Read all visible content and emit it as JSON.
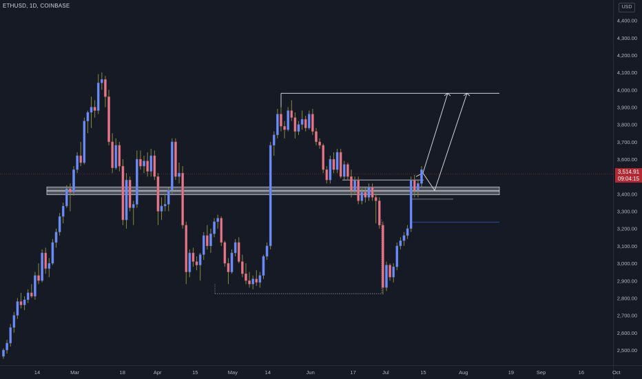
{
  "symbol_line": "ETHUSD, 1D, COINBASE",
  "currency": "USD",
  "last_price": {
    "price": "3,514.91",
    "countdown": "09:04:15"
  },
  "colors": {
    "up": "#6f8df0",
    "down": "#e07a8a",
    "wick": "#8a8a3c",
    "line": "#cfd2d8",
    "grid": "#1f2330",
    "text": "#b2b5be",
    "support": "#9598a1",
    "blue_line": "#2849a8",
    "bg": "#161a25"
  },
  "chart_data": {
    "type": "candlestick",
    "title": "ETHUSD, 1D, COINBASE",
    "y_axis": {
      "ylim": [
        2445,
        4470
      ],
      "ticks": [
        "2,500.00",
        "2,600.00",
        "2,700.00",
        "2,800.00",
        "2,900.00",
        "3,000.00",
        "3,100.00",
        "3,200.00",
        "3,300.00",
        "3,400.00",
        "3,500.00",
        "3,600.00",
        "3,700.00",
        "3,800.00",
        "3,900.00",
        "4,000.00",
        "4,100.00",
        "4,200.00",
        "4,300.00",
        "4,400.00"
      ],
      "tick_values": [
        2500,
        2600,
        2700,
        2800,
        2900,
        3000,
        3100,
        3200,
        3300,
        3400,
        3500,
        3600,
        3700,
        3800,
        3900,
        4000,
        4100,
        4200,
        4300,
        4400
      ],
      "position": "right"
    },
    "x_axis": {
      "labels": [
        "14",
        "Mar",
        "18",
        "Apr",
        "15",
        "May",
        "14",
        "Jun",
        "17",
        "Jul",
        "15",
        "Aug",
        "19",
        "Sep",
        "16",
        "Oct"
      ],
      "label_days": [
        14,
        29,
        48,
        62,
        77,
        92,
        106,
        123,
        140,
        153,
        168,
        184,
        203,
        215,
        231,
        245
      ]
    },
    "grid": false,
    "candles": [
      [
        2464,
        2510,
        2450,
        2500
      ],
      [
        2500,
        2560,
        2480,
        2540
      ],
      [
        2540,
        2650,
        2520,
        2630
      ],
      [
        2630,
        2720,
        2600,
        2700
      ],
      [
        2700,
        2800,
        2680,
        2780
      ],
      [
        2780,
        2830,
        2740,
        2760
      ],
      [
        2760,
        2810,
        2730,
        2790
      ],
      [
        2790,
        2850,
        2770,
        2830
      ],
      [
        2830,
        2880,
        2800,
        2810
      ],
      [
        2810,
        2950,
        2790,
        2930
      ],
      [
        2930,
        3000,
        2880,
        2900
      ],
      [
        2900,
        3080,
        2890,
        3060
      ],
      [
        3060,
        3090,
        2940,
        2970
      ],
      [
        2970,
        3030,
        2920,
        3000
      ],
      [
        3000,
        3140,
        2990,
        3120
      ],
      [
        3120,
        3200,
        3090,
        3180
      ],
      [
        3180,
        3290,
        3160,
        3270
      ],
      [
        3270,
        3350,
        3230,
        3330
      ],
      [
        3330,
        3450,
        3320,
        3430
      ],
      [
        3430,
        3460,
        3300,
        3410
      ],
      [
        3410,
        3560,
        3390,
        3540
      ],
      [
        3540,
        3640,
        3520,
        3620
      ],
      [
        3620,
        3700,
        3560,
        3580
      ],
      [
        3580,
        3840,
        3570,
        3820
      ],
      [
        3820,
        3880,
        3750,
        3870
      ],
      [
        3870,
        3960,
        3780,
        3900
      ],
      [
        3900,
        3940,
        3840,
        3880
      ],
      [
        3880,
        4090,
        3860,
        4040
      ],
      [
        4040,
        4100,
        4000,
        4060
      ],
      [
        4060,
        4080,
        3900,
        3960
      ],
      [
        3960,
        4000,
        3680,
        3700
      ],
      [
        3700,
        3750,
        3520,
        3550
      ],
      [
        3550,
        3720,
        3540,
        3680
      ],
      [
        3680,
        3700,
        3530,
        3560
      ],
      [
        3560,
        3600,
        3220,
        3250
      ],
      [
        3250,
        3520,
        3200,
        3480
      ],
      [
        3480,
        3500,
        3300,
        3320
      ],
      [
        3320,
        3360,
        3220,
        3340
      ],
      [
        3340,
        3650,
        3320,
        3600
      ],
      [
        3600,
        3650,
        3540,
        3560
      ],
      [
        3560,
        3620,
        3520,
        3590
      ],
      [
        3590,
        3640,
        3500,
        3530
      ],
      [
        3530,
        3660,
        3500,
        3620
      ],
      [
        3620,
        3650,
        3480,
        3500
      ],
      [
        3500,
        3520,
        3220,
        3300
      ],
      [
        3300,
        3380,
        3250,
        3330
      ],
      [
        3330,
        3400,
        3300,
        3340
      ],
      [
        3340,
        3440,
        3300,
        3420
      ],
      [
        3420,
        3720,
        3400,
        3700
      ],
      [
        3700,
        3720,
        3480,
        3500
      ],
      [
        3500,
        3580,
        3460,
        3520
      ],
      [
        3520,
        3560,
        3200,
        3220
      ],
      [
        3220,
        3240,
        2880,
        2950
      ],
      [
        2950,
        3080,
        2920,
        3060
      ],
      [
        3060,
        3090,
        2980,
        3010
      ],
      [
        3010,
        3040,
        2960,
        2990
      ],
      [
        2990,
        3060,
        2900,
        3050
      ],
      [
        3050,
        3180,
        3020,
        3160
      ],
      [
        3160,
        3220,
        3080,
        3100
      ],
      [
        3100,
        3200,
        3060,
        3170
      ],
      [
        3170,
        3260,
        3150,
        3240
      ],
      [
        3240,
        3280,
        3200,
        3260
      ],
      [
        3260,
        3270,
        3100,
        3120
      ],
      [
        3120,
        3130,
        2980,
        3000
      ],
      [
        3000,
        3030,
        2880,
        2950
      ],
      [
        2950,
        3080,
        2940,
        3060
      ],
      [
        3060,
        3140,
        3040,
        3120
      ],
      [
        3120,
        3150,
        3000,
        3010
      ],
      [
        3010,
        3050,
        2920,
        2940
      ],
      [
        2940,
        3000,
        2880,
        2900
      ],
      [
        2900,
        2950,
        2860,
        2880
      ],
      [
        2880,
        2930,
        2850,
        2910
      ],
      [
        2910,
        2960,
        2870,
        2890
      ],
      [
        2890,
        2950,
        2860,
        2930
      ],
      [
        2930,
        3050,
        2910,
        3040
      ],
      [
        3040,
        3120,
        3020,
        3100
      ],
      [
        3100,
        3700,
        3080,
        3680
      ],
      [
        3680,
        3760,
        3620,
        3740
      ],
      [
        3740,
        3890,
        3720,
        3860
      ],
      [
        3860,
        3900,
        3760,
        3790
      ],
      [
        3790,
        3820,
        3720,
        3770
      ],
      [
        3770,
        3900,
        3760,
        3880
      ],
      [
        3880,
        3940,
        3820,
        3840
      ],
      [
        3840,
        3870,
        3720,
        3760
      ],
      [
        3760,
        3820,
        3740,
        3800
      ],
      [
        3800,
        3880,
        3770,
        3830
      ],
      [
        3830,
        3850,
        3760,
        3780
      ],
      [
        3780,
        3880,
        3770,
        3860
      ],
      [
        3860,
        3890,
        3740,
        3760
      ],
      [
        3760,
        3780,
        3680,
        3700
      ],
      [
        3700,
        3720,
        3660,
        3680
      ],
      [
        3680,
        3690,
        3520,
        3540
      ],
      [
        3540,
        3560,
        3460,
        3480
      ],
      [
        3480,
        3620,
        3460,
        3600
      ],
      [
        3600,
        3640,
        3520,
        3540
      ],
      [
        3540,
        3660,
        3520,
        3640
      ],
      [
        3640,
        3660,
        3490,
        3500
      ],
      [
        3500,
        3590,
        3480,
        3570
      ],
      [
        3570,
        3580,
        3480,
        3500
      ],
      [
        3500,
        3540,
        3380,
        3420
      ],
      [
        3420,
        3500,
        3400,
        3480
      ],
      [
        3480,
        3500,
        3340,
        3360
      ],
      [
        3360,
        3430,
        3340,
        3410
      ],
      [
        3410,
        3440,
        3350,
        3380
      ],
      [
        3380,
        3460,
        3360,
        3440
      ],
      [
        3440,
        3460,
        3360,
        3380
      ],
      [
        3380,
        3400,
        3230,
        3360
      ],
      [
        3360,
        3380,
        3200,
        3220
      ],
      [
        3220,
        3240,
        2820,
        2860
      ],
      [
        2860,
        3010,
        2840,
        2990
      ],
      [
        2990,
        3000,
        2900,
        2920
      ],
      [
        2920,
        3000,
        2890,
        2980
      ],
      [
        2980,
        3120,
        2960,
        3100
      ],
      [
        3100,
        3150,
        3080,
        3130
      ],
      [
        3130,
        3180,
        3100,
        3160
      ],
      [
        3160,
        3220,
        3140,
        3200
      ],
      [
        3200,
        3500,
        3180,
        3480
      ],
      [
        3480,
        3510,
        3380,
        3420
      ],
      [
        3420,
        3480,
        3380,
        3460
      ],
      [
        3460,
        3560,
        3440,
        3540
      ]
    ],
    "annotations": {
      "support_zone": {
        "bottom": 3395,
        "top": 3440,
        "label": ""
      },
      "target_level": 3980,
      "dotted_range": {
        "low": 2825,
        "high": 3980
      },
      "blue_level": 3237,
      "current_price": 3514.91
    }
  }
}
